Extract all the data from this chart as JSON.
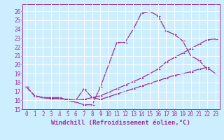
{
  "xlabel": "Windchill (Refroidissement éolien,°C)",
  "bg_color": "#cceeff",
  "line_color": "#993399",
  "grid_color": "#ffffff",
  "xlim": [
    -0.5,
    23.5
  ],
  "ylim": [
    15.0,
    26.8
  ],
  "yticks": [
    15,
    16,
    17,
    18,
    19,
    20,
    21,
    22,
    23,
    24,
    25,
    26
  ],
  "xticks": [
    0,
    1,
    2,
    3,
    4,
    5,
    6,
    7,
    8,
    9,
    10,
    11,
    12,
    13,
    14,
    15,
    16,
    17,
    18,
    19,
    20,
    21,
    22,
    23
  ],
  "line1_x": [
    0,
    1,
    2,
    3,
    4,
    5,
    6,
    7,
    8,
    9,
    10,
    11,
    12,
    13,
    14,
    15,
    16,
    17,
    18,
    19,
    20,
    21,
    22
  ],
  "line1_y": [
    17.5,
    16.5,
    16.3,
    16.3,
    16.3,
    16.0,
    15.8,
    15.5,
    15.5,
    17.5,
    20.0,
    22.5,
    22.5,
    24.0,
    25.8,
    26.0,
    25.5,
    23.8,
    23.4,
    22.7,
    21.0,
    20.5,
    19.5
  ],
  "line2_x": [
    0,
    1,
    2,
    3,
    4,
    5,
    6,
    7,
    8,
    9,
    10,
    11,
    12,
    13,
    14,
    15,
    16,
    17,
    18,
    19,
    20,
    21,
    22,
    23
  ],
  "line2_y": [
    17.5,
    16.5,
    16.3,
    16.2,
    16.2,
    16.1,
    16.0,
    16.1,
    16.3,
    16.5,
    16.9,
    17.3,
    17.7,
    18.1,
    18.5,
    19.0,
    19.5,
    20.3,
    20.8,
    21.3,
    21.8,
    22.3,
    22.8,
    22.9
  ],
  "line3_x": [
    0,
    1,
    2,
    3,
    4,
    5,
    6,
    7,
    8,
    9,
    10,
    11,
    12,
    13,
    14,
    15,
    16,
    17,
    18,
    19,
    20,
    21,
    22,
    23
  ],
  "line3_y": [
    17.5,
    16.5,
    16.3,
    16.2,
    16.2,
    16.1,
    16.0,
    17.3,
    16.3,
    16.1,
    16.4,
    16.7,
    17.0,
    17.3,
    17.6,
    17.9,
    18.2,
    18.5,
    18.8,
    19.0,
    19.2,
    19.5,
    19.7,
    19.0
  ],
  "marker_size": 2.0,
  "linewidth": 0.9,
  "xlabel_fontsize": 6.5,
  "tick_fontsize": 5.5
}
